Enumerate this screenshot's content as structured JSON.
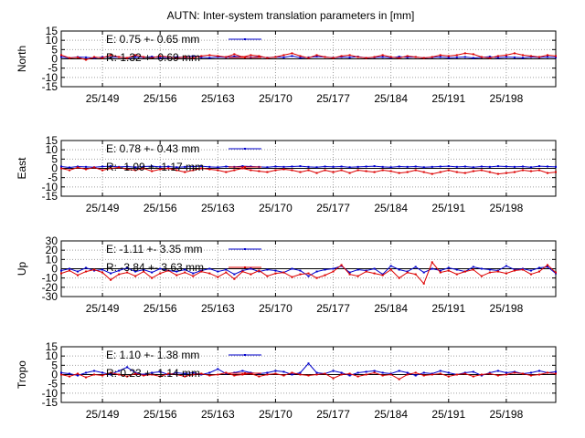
{
  "title": "AUTN: Inter-system translation parameters in [mm]",
  "colors": {
    "E": "#0000cc",
    "R": "#dd0000",
    "axis": "#000000",
    "grid": "#a0a0a0"
  },
  "chart_data": [
    {
      "type": "line",
      "ylabel": "North",
      "ylim": [
        -15,
        15
      ],
      "yticks": [
        15,
        10,
        5,
        0,
        -5,
        -10,
        -15
      ],
      "xlim": [
        144,
        204
      ],
      "xticks": [
        149,
        156,
        163,
        170,
        177,
        184,
        191,
        198
      ],
      "xtick_labels": [
        "25/149",
        "25/156",
        "25/163",
        "25/170",
        "25/177",
        "25/184",
        "25/191",
        "25/198"
      ],
      "grid": true,
      "legend_position": "top-left",
      "legend": [
        "E:   0.75 +- 0.65 mm",
        "R:   1.32 +- 0.69 mm"
      ],
      "x": [
        144,
        145,
        146,
        147,
        148,
        149,
        150,
        151,
        152,
        153,
        154,
        155,
        156,
        157,
        158,
        159,
        160,
        161,
        162,
        163,
        164,
        165,
        166,
        167,
        168,
        169,
        170,
        171,
        172,
        173,
        174,
        175,
        176,
        177,
        178,
        179,
        180,
        181,
        182,
        183,
        184,
        185,
        186,
        187,
        188,
        189,
        190,
        191,
        192,
        193,
        194,
        195,
        196,
        197,
        198,
        199,
        200,
        201,
        202,
        203,
        204
      ],
      "series": [
        {
          "name": "E",
          "values": [
            1,
            0.5,
            1,
            0.8,
            0.5,
            1,
            0.8,
            1,
            0.5,
            1,
            0.8,
            1.2,
            0.6,
            0.8,
            1,
            0.8,
            1.5,
            0.8,
            0.6,
            1,
            0.8,
            1.3,
            1,
            0.8,
            1.2,
            0.6,
            1,
            0.8,
            1.5,
            0.6,
            0.8,
            1.2,
            1,
            0.6,
            1,
            0.8,
            1.2,
            0.5,
            0.8,
            1,
            0.6,
            1.2,
            0.8,
            1,
            0.5,
            0.8,
            1,
            0.6,
            0.8,
            1,
            0.5,
            0.8,
            1.2,
            0.6,
            1,
            0.8,
            0.6,
            1,
            0.8,
            1,
            0.8
          ]
        },
        {
          "name": "R",
          "values": [
            2,
            0.5,
            0.8,
            -0.5,
            1,
            0.5,
            2,
            1,
            0.5,
            2,
            1,
            0.5,
            1.5,
            1,
            0.5,
            1,
            0.5,
            1.5,
            2,
            1.5,
            1,
            2.5,
            1,
            2,
            1.5,
            0.5,
            1,
            2,
            3,
            1.5,
            0.5,
            2,
            1,
            0.5,
            1.5,
            2,
            1,
            0.5,
            1,
            2,
            1,
            0.5,
            1.5,
            1,
            0.5,
            1,
            2,
            1.5,
            2,
            3,
            2.5,
            1,
            0.5,
            1.5,
            2,
            3,
            2,
            1.5,
            1,
            2,
            1.5
          ]
        }
      ]
    },
    {
      "type": "line",
      "ylabel": "East",
      "ylim": [
        -15,
        15
      ],
      "yticks": [
        15,
        10,
        5,
        0,
        -5,
        -10,
        -15
      ],
      "xlim": [
        144,
        204
      ],
      "xticks": [
        149,
        156,
        163,
        170,
        177,
        184,
        191,
        198
      ],
      "xtick_labels": [
        "25/149",
        "25/156",
        "25/163",
        "25/170",
        "25/177",
        "25/184",
        "25/191",
        "25/198"
      ],
      "grid": true,
      "legend_position": "top-left",
      "legend": [
        "E:   0.78 +- 0.43 mm",
        "R:  -1.09 +- 1.17 mm"
      ],
      "x": [
        144,
        145,
        146,
        147,
        148,
        149,
        150,
        151,
        152,
        153,
        154,
        155,
        156,
        157,
        158,
        159,
        160,
        161,
        162,
        163,
        164,
        165,
        166,
        167,
        168,
        169,
        170,
        171,
        172,
        173,
        174,
        175,
        176,
        177,
        178,
        179,
        180,
        181,
        182,
        183,
        184,
        185,
        186,
        187,
        188,
        189,
        190,
        191,
        192,
        193,
        194,
        195,
        196,
        197,
        198,
        199,
        200,
        201,
        202,
        203,
        204
      ],
      "series": [
        {
          "name": "E",
          "values": [
            1,
            0.5,
            1,
            0.8,
            0.6,
            1,
            1.2,
            0.8,
            1,
            0.6,
            1,
            1.2,
            0.8,
            1,
            0.6,
            0.8,
            1,
            1.2,
            0.8,
            0.6,
            1,
            0.8,
            1.2,
            1,
            0.8,
            0.6,
            1,
            0.8,
            1,
            1.2,
            0.8,
            0.6,
            1,
            0.8,
            1,
            0.6,
            0.8,
            1,
            1.2,
            0.8,
            0.6,
            1,
            0.8,
            1,
            0.6,
            0.8,
            1,
            1.2,
            0.8,
            1,
            0.6,
            1,
            0.8,
            1.2,
            1,
            0.8,
            1,
            0.6,
            1.2,
            1,
            0.8
          ]
        },
        {
          "name": "R",
          "values": [
            0,
            -1,
            0.5,
            -0.5,
            0.5,
            -1,
            0,
            0.5,
            -0.5,
            -1,
            0,
            -1.5,
            -0.5,
            0,
            -1,
            -2,
            -1,
            0,
            -0.5,
            -1,
            -2,
            -1,
            0,
            -1,
            -1.5,
            -2,
            -1,
            -0.5,
            -1,
            -2,
            -1,
            -2.5,
            -1,
            -2,
            -1,
            -2.5,
            -1,
            -1.5,
            -2,
            -1,
            -1.5,
            -2.5,
            -2,
            -1,
            -2,
            -3,
            -2,
            -1,
            -2,
            -2.5,
            -1.5,
            -1,
            -2,
            -3,
            -2.5,
            -2,
            -1,
            -1.5,
            -1,
            -2.5,
            -2
          ]
        }
      ]
    },
    {
      "type": "line",
      "ylabel": "Up",
      "ylim": [
        -30,
        30
      ],
      "yticks": [
        30,
        20,
        10,
        0,
        -10,
        -20,
        -30
      ],
      "xlim": [
        144,
        204
      ],
      "xticks": [
        149,
        156,
        163,
        170,
        177,
        184,
        191,
        198
      ],
      "xtick_labels": [
        "25/149",
        "25/156",
        "25/163",
        "25/170",
        "25/177",
        "25/184",
        "25/191",
        "25/198"
      ],
      "grid": true,
      "legend_position": "top-left",
      "legend": [
        "E:  -1.11 +- 3.35 mm",
        "R:  -3.84 +- 3.63 mm"
      ],
      "x": [
        144,
        145,
        146,
        147,
        148,
        149,
        150,
        151,
        152,
        153,
        154,
        155,
        156,
        157,
        158,
        159,
        160,
        161,
        162,
        163,
        164,
        165,
        166,
        167,
        168,
        169,
        170,
        171,
        172,
        173,
        174,
        175,
        176,
        177,
        178,
        179,
        180,
        181,
        182,
        183,
        184,
        185,
        186,
        187,
        188,
        189,
        190,
        191,
        192,
        193,
        194,
        195,
        196,
        197,
        198,
        199,
        200,
        201,
        202,
        203,
        204
      ],
      "series": [
        {
          "name": "E",
          "values": [
            -2,
            0,
            -3,
            1,
            -2,
            -1,
            -5,
            -2,
            1,
            -3,
            -1,
            -4,
            0,
            -2,
            -3,
            -1,
            -5,
            -2,
            0,
            -3,
            -1,
            -6,
            -2,
            0,
            -3,
            -1,
            -2,
            -4,
            0,
            -2,
            -8,
            -3,
            -1,
            0,
            3,
            -4,
            -1,
            -2,
            0,
            -6,
            3,
            -1,
            -3,
            2,
            -4,
            0,
            -2,
            1,
            -1,
            -3,
            2,
            0,
            -1,
            -2,
            3,
            -1,
            0,
            -2,
            1,
            2,
            -5
          ]
        },
        {
          "name": "R",
          "values": [
            -5,
            -2,
            -7,
            -3,
            -1,
            -4,
            -12,
            -6,
            -4,
            -8,
            -3,
            -10,
            -5,
            -2,
            -7,
            -4,
            -8,
            -3,
            -5,
            -9,
            -4,
            -11,
            -3,
            -6,
            -2,
            -8,
            -5,
            -4,
            -9,
            -6,
            -5,
            -10,
            -7,
            -3,
            4,
            -6,
            -8,
            -3,
            -5,
            -7,
            -1,
            -10,
            -4,
            -6,
            -16,
            7,
            -4,
            -2,
            -6,
            -3,
            -1,
            -8,
            -4,
            -3,
            -5,
            -2,
            -1,
            -6,
            -3,
            4,
            -4
          ]
        }
      ]
    },
    {
      "type": "line",
      "ylabel": "Tropo",
      "ylim": [
        -15,
        15
      ],
      "yticks": [
        15,
        10,
        5,
        0,
        -5,
        -10,
        -15
      ],
      "xlim": [
        144,
        204
      ],
      "xticks": [
        149,
        156,
        163,
        170,
        177,
        184,
        191,
        198
      ],
      "xtick_labels": [
        "25/149",
        "25/156",
        "25/163",
        "25/170",
        "25/177",
        "25/184",
        "25/191",
        "25/198"
      ],
      "grid": true,
      "legend_position": "top-left",
      "legend": [
        "E:   1.10 +- 1.38 mm",
        "R:   0.23 +- 1.14 mm"
      ],
      "x": [
        144,
        145,
        146,
        147,
        148,
        149,
        150,
        151,
        152,
        153,
        154,
        155,
        156,
        157,
        158,
        159,
        160,
        161,
        162,
        163,
        164,
        165,
        166,
        167,
        168,
        169,
        170,
        171,
        172,
        173,
        174,
        175,
        176,
        177,
        178,
        179,
        180,
        181,
        182,
        183,
        184,
        185,
        186,
        187,
        188,
        189,
        190,
        191,
        192,
        193,
        194,
        195,
        196,
        197,
        198,
        199,
        200,
        201,
        202,
        203,
        204
      ],
      "series": [
        {
          "name": "E",
          "values": [
            1,
            0.5,
            -0.5,
            1,
            2,
            1,
            0,
            2,
            4,
            1,
            0,
            1,
            1.5,
            0,
            1,
            0.5,
            1,
            0,
            1,
            3,
            0.5,
            1,
            2,
            1,
            0.5,
            1,
            2,
            1.5,
            0,
            1,
            6,
            1,
            0.5,
            2,
            1,
            -0.5,
            1,
            1.5,
            2,
            1,
            0.5,
            2,
            1,
            -0.5,
            1,
            0.5,
            2,
            1,
            0,
            1,
            1.5,
            -0.5,
            1,
            2,
            1,
            1.5,
            0.5,
            1,
            2,
            1,
            1.5
          ]
        },
        {
          "name": "R",
          "values": [
            0,
            -1,
            0.5,
            -1.5,
            0,
            -0.5,
            1,
            0,
            -1,
            0.5,
            -0.5,
            0,
            -1,
            0.5,
            0,
            -1,
            0,
            0.5,
            -0.5,
            0,
            1,
            -0.5,
            0,
            0.5,
            -1,
            0,
            0.5,
            -0.5,
            1,
            0,
            -0.5,
            0,
            0.5,
            -2,
            0,
            0.5,
            -1,
            0,
            1,
            -0.5,
            0,
            -2.5,
            0,
            1,
            -0.5,
            0,
            0.5,
            -1,
            0,
            0.5,
            -1,
            0,
            0.5,
            -0.5,
            0,
            1,
            0.5,
            -0.5,
            0,
            1,
            0.5
          ]
        }
      ]
    }
  ]
}
